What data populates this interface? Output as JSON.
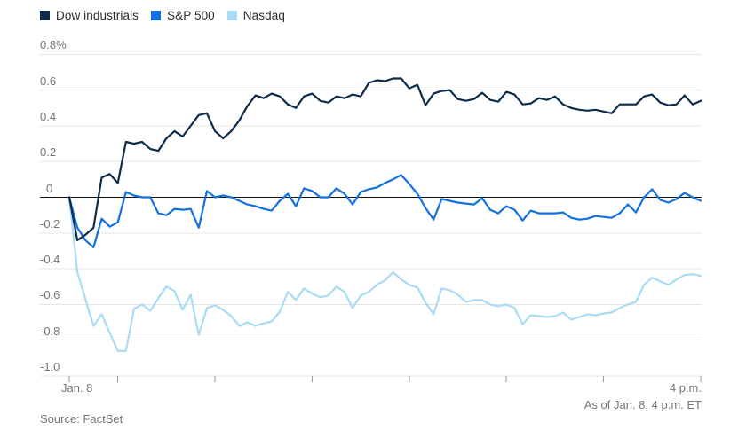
{
  "footer": {
    "source": "Source: FactSet",
    "as_of": "As of Jan. 8, 4 p.m. ET"
  },
  "chart_data": {
    "type": "line",
    "title": "",
    "xlabel": "",
    "ylabel": "",
    "grid": true,
    "legend_position": "top-left",
    "ylim": [
      -1.0,
      0.8
    ],
    "y_axis": {
      "ticks": [
        {
          "label": "0.8%",
          "value": 0.8
        },
        {
          "label": "0.6",
          "value": 0.6
        },
        {
          "label": "0.4",
          "value": 0.4
        },
        {
          "label": "0.2",
          "value": 0.2
        },
        {
          "label": "0",
          "value": 0.0
        },
        {
          "label": "-0.2",
          "value": -0.2
        },
        {
          "label": "-0.4",
          "value": -0.4
        },
        {
          "label": "-0.6",
          "value": -0.6
        },
        {
          "label": "-0.8",
          "value": -0.8
        },
        {
          "label": "-1.0",
          "value": -1.0
        }
      ]
    },
    "x_axis": {
      "left_label": "Jan. 8",
      "right_label": "4 p.m.",
      "total_minutes": 390,
      "tick_minutes": [
        0,
        30,
        90,
        150,
        210,
        270,
        330,
        390
      ]
    },
    "colors": {
      "grid": "#e5e5e5",
      "zero_line": "#111111",
      "tick": "#999999",
      "axis_text": "#757575"
    },
    "series": [
      {
        "name": "Dow industrials",
        "color": "#0d2b4d",
        "values": [
          0,
          -0.24,
          -0.21,
          -0.17,
          0.11,
          0.13,
          0.08,
          0.31,
          0.3,
          0.31,
          0.27,
          0.26,
          0.33,
          0.37,
          0.34,
          0.4,
          0.46,
          0.47,
          0.37,
          0.33,
          0.37,
          0.43,
          0.51,
          0.57,
          0.555,
          0.58,
          0.565,
          0.52,
          0.5,
          0.565,
          0.58,
          0.54,
          0.53,
          0.565,
          0.555,
          0.575,
          0.565,
          0.64,
          0.655,
          0.65,
          0.665,
          0.665,
          0.61,
          0.63,
          0.515,
          0.58,
          0.595,
          0.6,
          0.55,
          0.54,
          0.55,
          0.585,
          0.545,
          0.535,
          0.59,
          0.575,
          0.52,
          0.525,
          0.555,
          0.545,
          0.565,
          0.52,
          0.5,
          0.49,
          0.485,
          0.49,
          0.48,
          0.47,
          0.52,
          0.52,
          0.52,
          0.565,
          0.575,
          0.53,
          0.515,
          0.52,
          0.57,
          0.52,
          0.54
        ]
      },
      {
        "name": "S&P 500",
        "color": "#1170e2",
        "values": [
          0,
          -0.17,
          -0.24,
          -0.28,
          -0.12,
          -0.165,
          -0.14,
          0.03,
          0.01,
          0.0,
          0.0,
          -0.09,
          -0.1,
          -0.065,
          -0.07,
          -0.065,
          -0.17,
          0.035,
          0.0,
          0.01,
          0.0,
          -0.02,
          -0.04,
          -0.05,
          -0.065,
          -0.075,
          -0.02,
          0.02,
          -0.05,
          0.05,
          0.035,
          0.0,
          0.0,
          0.05,
          0.02,
          -0.04,
          0.03,
          0.045,
          0.055,
          0.08,
          0.1,
          0.125,
          0.075,
          0.02,
          -0.06,
          -0.125,
          -0.01,
          -0.02,
          -0.03,
          -0.035,
          -0.04,
          -0.005,
          -0.07,
          -0.09,
          -0.05,
          -0.07,
          -0.13,
          -0.075,
          -0.09,
          -0.09,
          -0.09,
          -0.085,
          -0.115,
          -0.125,
          -0.12,
          -0.105,
          -0.11,
          -0.115,
          -0.09,
          -0.04,
          -0.085,
          0.0,
          0.045,
          -0.015,
          -0.03,
          -0.01,
          0.025,
          0.0,
          -0.02
        ]
      },
      {
        "name": "Nasdaq",
        "color": "#a8dbf5",
        "values": [
          0,
          -0.42,
          -0.57,
          -0.72,
          -0.655,
          -0.76,
          -0.86,
          -0.86,
          -0.625,
          -0.6,
          -0.635,
          -0.565,
          -0.5,
          -0.525,
          -0.63,
          -0.545,
          -0.77,
          -0.62,
          -0.605,
          -0.63,
          -0.665,
          -0.72,
          -0.7,
          -0.72,
          -0.705,
          -0.695,
          -0.64,
          -0.53,
          -0.575,
          -0.51,
          -0.54,
          -0.56,
          -0.55,
          -0.5,
          -0.53,
          -0.62,
          -0.55,
          -0.53,
          -0.49,
          -0.465,
          -0.42,
          -0.46,
          -0.49,
          -0.505,
          -0.59,
          -0.655,
          -0.51,
          -0.52,
          -0.545,
          -0.585,
          -0.575,
          -0.575,
          -0.6,
          -0.61,
          -0.6,
          -0.62,
          -0.71,
          -0.66,
          -0.665,
          -0.67,
          -0.665,
          -0.645,
          -0.685,
          -0.67,
          -0.655,
          -0.66,
          -0.65,
          -0.645,
          -0.62,
          -0.6,
          -0.585,
          -0.49,
          -0.45,
          -0.47,
          -0.49,
          -0.46,
          -0.435,
          -0.43,
          -0.44
        ]
      }
    ]
  }
}
